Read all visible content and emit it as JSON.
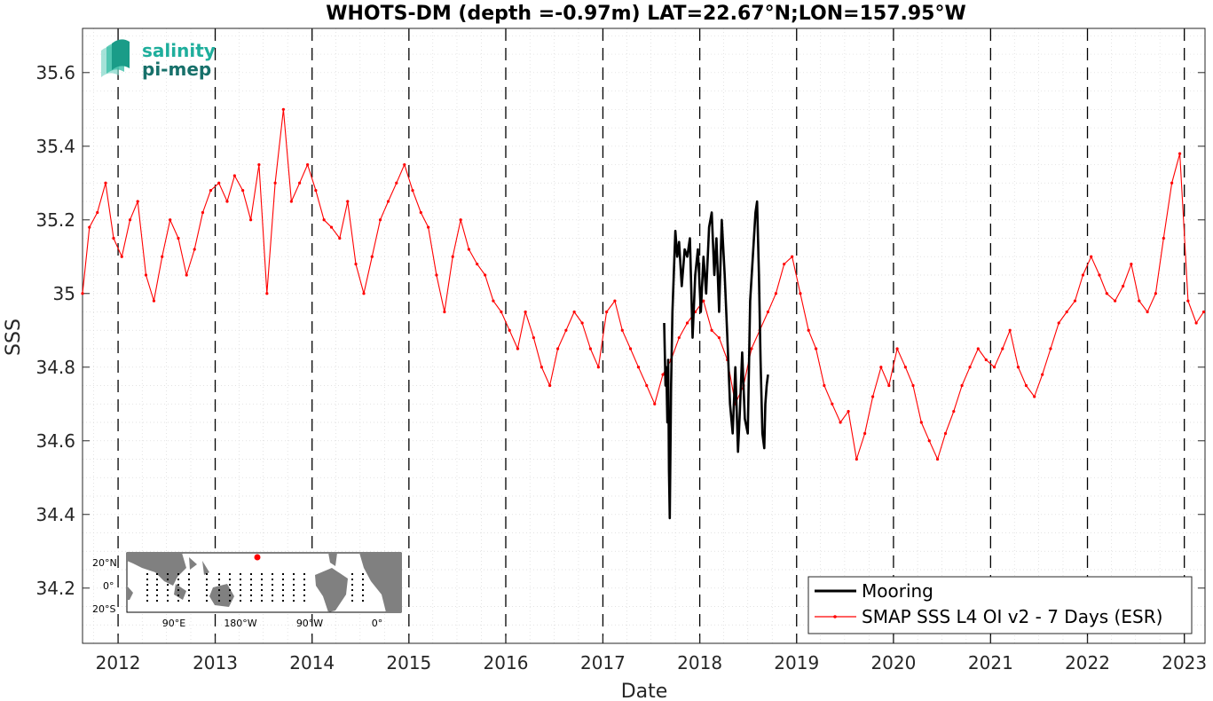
{
  "chart_data": {
    "type": "line",
    "title": "WHOTS-DM (depth =-0.97m) LAT=22.67°N;LON=157.95°W",
    "xlabel": "Date",
    "ylabel": "SSS",
    "xlim": [
      "2011-08-20",
      "2023-03-20"
    ],
    "ylim": [
      34.05,
      35.72
    ],
    "x_ticks": [
      "2012",
      "2013",
      "2014",
      "2015",
      "2016",
      "2017",
      "2018",
      "2019",
      "2020",
      "2021",
      "2022",
      "2023"
    ],
    "y_ticks": [
      {
        "value": 34.2,
        "label": "34.2"
      },
      {
        "value": 34.4,
        "label": "34.4"
      },
      {
        "value": 34.6,
        "label": "34.6"
      },
      {
        "value": 34.8,
        "label": "34.8"
      },
      {
        "value": 35.0,
        "label": "35"
      },
      {
        "value": 35.2,
        "label": "35.2"
      },
      {
        "value": 35.4,
        "label": "35.4"
      },
      {
        "value": 35.6,
        "label": "35.6"
      }
    ],
    "grid": true,
    "year_boundaries": "dashed black vertical lines at each January 1",
    "legend_position": "bottom-right",
    "series": [
      {
        "name": "Mooring",
        "color": "#000000",
        "x": [
          "2017-08-20",
          "2017-08-25",
          "2017-08-28",
          "2017-09-01",
          "2017-09-04",
          "2017-09-07",
          "2017-09-10",
          "2017-09-15",
          "2017-09-20",
          "2017-09-25",
          "2017-10-01",
          "2017-10-08",
          "2017-10-15",
          "2017-10-25",
          "2017-11-05",
          "2017-11-15",
          "2017-11-25",
          "2017-12-05",
          "2017-12-15",
          "2017-12-25",
          "2018-01-05",
          "2018-01-15",
          "2018-01-25",
          "2018-02-05",
          "2018-02-15",
          "2018-02-25",
          "2018-03-05",
          "2018-03-15",
          "2018-03-25",
          "2018-04-05",
          "2018-04-15",
          "2018-04-25",
          "2018-05-05",
          "2018-05-15",
          "2018-05-25",
          "2018-06-01",
          "2018-06-10",
          "2018-06-20",
          "2018-07-01",
          "2018-07-10",
          "2018-07-20",
          "2018-07-30",
          "2018-08-05",
          "2018-08-12",
          "2018-08-18",
          "2018-08-25",
          "2018-09-01",
          "2018-09-05",
          "2018-09-10",
          "2018-09-15"
        ],
        "y": [
          34.92,
          34.75,
          34.8,
          34.65,
          34.82,
          34.52,
          34.39,
          34.75,
          34.95,
          35.05,
          35.17,
          35.1,
          35.14,
          35.02,
          35.12,
          35.1,
          35.15,
          34.88,
          35.05,
          35.12,
          34.95,
          35.1,
          35.0,
          35.18,
          35.22,
          35.05,
          35.15,
          34.95,
          35.2,
          35.05,
          34.88,
          34.7,
          34.62,
          34.8,
          34.57,
          34.68,
          34.84,
          34.66,
          34.62,
          34.98,
          35.1,
          35.22,
          35.25,
          35.05,
          34.82,
          34.62,
          34.58,
          34.7,
          34.75,
          34.78
        ]
      },
      {
        "name": "SMAP SSS L4 OI v2 - 7 Days (ESR)",
        "color": "#ff0000",
        "x": [
          "2011-08-20",
          "2011-09-15",
          "2011-10-15",
          "2011-11-15",
          "2011-12-15",
          "2012-01-15",
          "2012-02-15",
          "2012-03-15",
          "2012-04-15",
          "2012-05-15",
          "2012-06-15",
          "2012-07-15",
          "2012-08-15",
          "2012-09-15",
          "2012-10-15",
          "2012-11-15",
          "2012-12-15",
          "2013-01-15",
          "2013-02-15",
          "2013-03-15",
          "2013-04-15",
          "2013-05-15",
          "2013-06-15",
          "2013-07-15",
          "2013-08-15",
          "2013-09-15",
          "2013-10-15",
          "2013-11-15",
          "2013-12-15",
          "2014-01-15",
          "2014-02-15",
          "2014-03-15",
          "2014-04-15",
          "2014-05-15",
          "2014-06-15",
          "2014-07-15",
          "2014-08-15",
          "2014-09-15",
          "2014-10-15",
          "2014-11-15",
          "2014-12-15",
          "2015-01-15",
          "2015-02-15",
          "2015-03-15",
          "2015-04-15",
          "2015-05-15",
          "2015-06-15",
          "2015-07-15",
          "2015-08-15",
          "2015-09-15",
          "2015-10-15",
          "2015-11-15",
          "2015-12-15",
          "2016-01-15",
          "2016-02-15",
          "2016-03-15",
          "2016-04-15",
          "2016-05-15",
          "2016-06-15",
          "2016-07-15",
          "2016-08-15",
          "2016-09-15",
          "2016-10-15",
          "2016-11-15",
          "2016-12-15",
          "2017-01-15",
          "2017-02-15",
          "2017-03-15",
          "2017-04-15",
          "2017-05-15",
          "2017-06-15",
          "2017-07-15",
          "2017-08-15",
          "2017-09-15",
          "2017-10-15",
          "2017-11-15",
          "2017-12-15",
          "2018-01-15",
          "2018-02-15",
          "2018-03-15",
          "2018-04-15",
          "2018-05-15",
          "2018-06-15",
          "2018-07-15",
          "2018-08-15",
          "2018-09-15",
          "2018-10-15",
          "2018-11-15",
          "2018-12-15",
          "2019-01-15",
          "2019-02-15",
          "2019-03-15",
          "2019-04-15",
          "2019-05-15",
          "2019-06-15",
          "2019-07-15",
          "2019-08-15",
          "2019-09-15",
          "2019-10-15",
          "2019-11-15",
          "2019-12-15",
          "2020-01-15",
          "2020-02-15",
          "2020-03-15",
          "2020-04-15",
          "2020-05-15",
          "2020-06-15",
          "2020-07-15",
          "2020-08-15",
          "2020-09-15",
          "2020-10-15",
          "2020-11-15",
          "2020-12-15",
          "2021-01-15",
          "2021-02-15",
          "2021-03-15",
          "2021-04-15",
          "2021-05-15",
          "2021-06-15",
          "2021-07-15",
          "2021-08-15",
          "2021-09-15",
          "2021-10-15",
          "2021-11-15",
          "2021-12-15",
          "2022-01-15",
          "2022-02-15",
          "2022-03-15",
          "2022-04-15",
          "2022-05-15",
          "2022-06-15",
          "2022-07-15",
          "2022-08-15",
          "2022-09-15",
          "2022-10-15",
          "2022-11-15",
          "2022-12-15",
          "2023-01-15",
          "2023-02-15",
          "2023-03-15"
        ],
        "y": [
          35.0,
          35.18,
          35.22,
          35.3,
          35.15,
          35.1,
          35.2,
          35.25,
          35.05,
          34.98,
          35.1,
          35.2,
          35.15,
          35.05,
          35.12,
          35.22,
          35.28,
          35.3,
          35.25,
          35.32,
          35.28,
          35.2,
          35.35,
          35.0,
          35.3,
          35.5,
          35.25,
          35.3,
          35.35,
          35.28,
          35.2,
          35.18,
          35.15,
          35.25,
          35.08,
          35.0,
          35.1,
          35.2,
          35.25,
          35.3,
          35.35,
          35.28,
          35.22,
          35.18,
          35.05,
          34.95,
          35.1,
          35.2,
          35.12,
          35.08,
          35.05,
          34.98,
          34.95,
          34.9,
          34.85,
          34.95,
          34.88,
          34.8,
          34.75,
          34.85,
          34.9,
          34.95,
          34.92,
          34.85,
          34.8,
          34.95,
          34.98,
          34.9,
          34.85,
          34.8,
          34.75,
          34.7,
          34.78,
          34.82,
          34.88,
          34.92,
          34.95,
          34.98,
          34.9,
          34.88,
          34.82,
          34.7,
          34.75,
          34.85,
          34.9,
          34.95,
          35.0,
          35.08,
          35.1,
          35.0,
          34.9,
          34.85,
          34.75,
          34.7,
          34.65,
          34.68,
          34.55,
          34.62,
          34.72,
          34.8,
          34.75,
          34.85,
          34.8,
          34.75,
          34.65,
          34.6,
          34.55,
          34.62,
          34.68,
          34.75,
          34.8,
          34.85,
          34.82,
          34.8,
          34.85,
          34.9,
          34.8,
          34.75,
          34.72,
          34.78,
          34.85,
          34.92,
          34.95,
          34.98,
          35.05,
          35.1,
          35.05,
          35.0,
          34.98,
          35.02,
          35.08,
          34.98,
          34.95,
          35.0,
          35.15,
          35.3,
          35.38,
          34.98,
          34.92,
          34.95
        ]
      }
    ]
  },
  "legend": {
    "mooring_label": "Mooring",
    "smap_label": "SMAP SSS L4 OI v2 - 7 Days (ESR)"
  },
  "logo": {
    "line1": "salinity",
    "line2": "pi-mep",
    "color_line1": "#1fae9c",
    "color_line2": "#17706a"
  },
  "inset_map": {
    "lat_labels": [
      "20°N",
      "0°",
      "20°S"
    ],
    "lon_labels": [
      "90°E",
      "180°W",
      "90°W",
      "0°"
    ],
    "land_color": "#808080",
    "marker_color": "#ff0000"
  }
}
